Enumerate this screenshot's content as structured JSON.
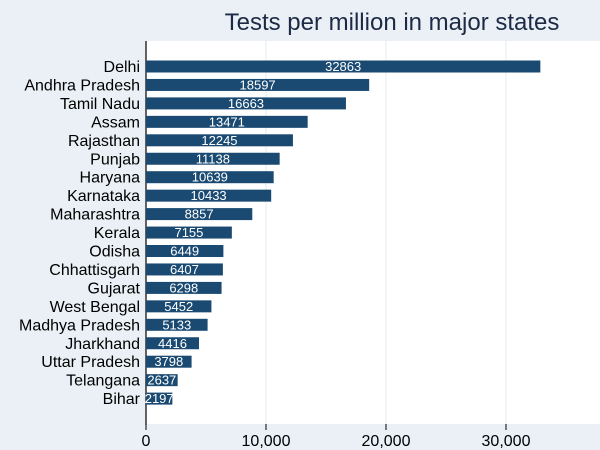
{
  "chart_data": {
    "type": "bar",
    "orientation": "horizontal",
    "title": "Tests per million in major states",
    "xlabel": "",
    "ylabel": "",
    "xlim": [
      0,
      37800
    ],
    "xticks": [
      0,
      10000,
      20000,
      30000
    ],
    "xtick_labels": [
      "0",
      "10,000",
      "20,000",
      "30,000"
    ],
    "grid": true,
    "categories": [
      "Delhi",
      "Andhra Pradesh",
      "Tamil Nadu",
      "Assam",
      "Rajasthan",
      "Punjab",
      "Haryana",
      "Karnataka",
      "Maharashtra",
      "Kerala",
      "Odisha",
      "Chhattisgarh",
      "Gujarat",
      "West Bengal",
      "Madhya Pradesh",
      "Jharkhand",
      "Uttar Pradesh",
      "Telangana",
      "Bihar"
    ],
    "values": [
      32863,
      18597,
      16663,
      13471,
      12245,
      11138,
      10639,
      10433,
      8857,
      7155,
      6449,
      6407,
      6298,
      5452,
      5133,
      4416,
      3798,
      2637,
      2197
    ],
    "data_labels": [
      "32863",
      "18597",
      "16663",
      "13471",
      "12245",
      "11138",
      "10639",
      "10433",
      "8857",
      "7155",
      "6449",
      "6407",
      "6298",
      "5452",
      "5133",
      "4416",
      "3798",
      "2637",
      "2197"
    ],
    "colors": {
      "bar": "#1a4a72",
      "background": "#eaf0f5",
      "plot": "#ffffff",
      "grid": "#e6ebf0"
    }
  }
}
